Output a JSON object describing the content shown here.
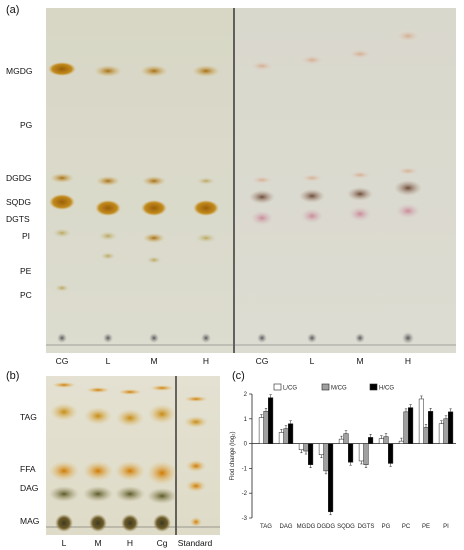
{
  "panel_a": {
    "label": "(a)",
    "band_labels": [
      "MGDG",
      "PG",
      "DGDG",
      "SQDG",
      "DGTS",
      "PI",
      "PE",
      "PC"
    ],
    "lane_labels": [
      "CG",
      "L",
      "M",
      "H",
      "CG",
      "L",
      "M",
      "H"
    ]
  },
  "panel_b": {
    "label": "(b)",
    "band_labels": [
      "TAG",
      "FFA",
      "DAG",
      "MAG"
    ],
    "lane_labels": [
      "L",
      "M",
      "H",
      "Cg",
      "Standard"
    ]
  },
  "panel_c": {
    "label": "(c)",
    "chart_data": {
      "type": "bar",
      "categories": [
        "TAG",
        "DAG",
        "MGDG",
        "DGDG",
        "SQDG",
        "DGTS",
        "PG",
        "PC",
        "PE",
        "PI"
      ],
      "series": [
        {
          "name": "L/CG",
          "values": [
            1.05,
            0.45,
            -0.25,
            -0.45,
            0.18,
            -0.7,
            0.2,
            0.1,
            1.8,
            0.8
          ],
          "color": "#ffffff"
        },
        {
          "name": "M/CG",
          "values": [
            1.3,
            0.6,
            -0.3,
            -1.1,
            0.4,
            -0.85,
            0.28,
            1.28,
            0.65,
            1.0
          ],
          "color": "#a0a0a0"
        },
        {
          "name": "H/CG",
          "values": [
            1.85,
            0.8,
            -0.85,
            -2.75,
            -0.75,
            0.25,
            -0.8,
            1.45,
            1.3,
            1.28
          ],
          "color": "#000000"
        }
      ],
      "ylabel": "Flod change (log₂)",
      "ylim": [
        -3,
        2
      ],
      "yticks": [
        "-3",
        "-2",
        "-1",
        "0",
        "1",
        "2"
      ],
      "legend_position": "top"
    }
  }
}
